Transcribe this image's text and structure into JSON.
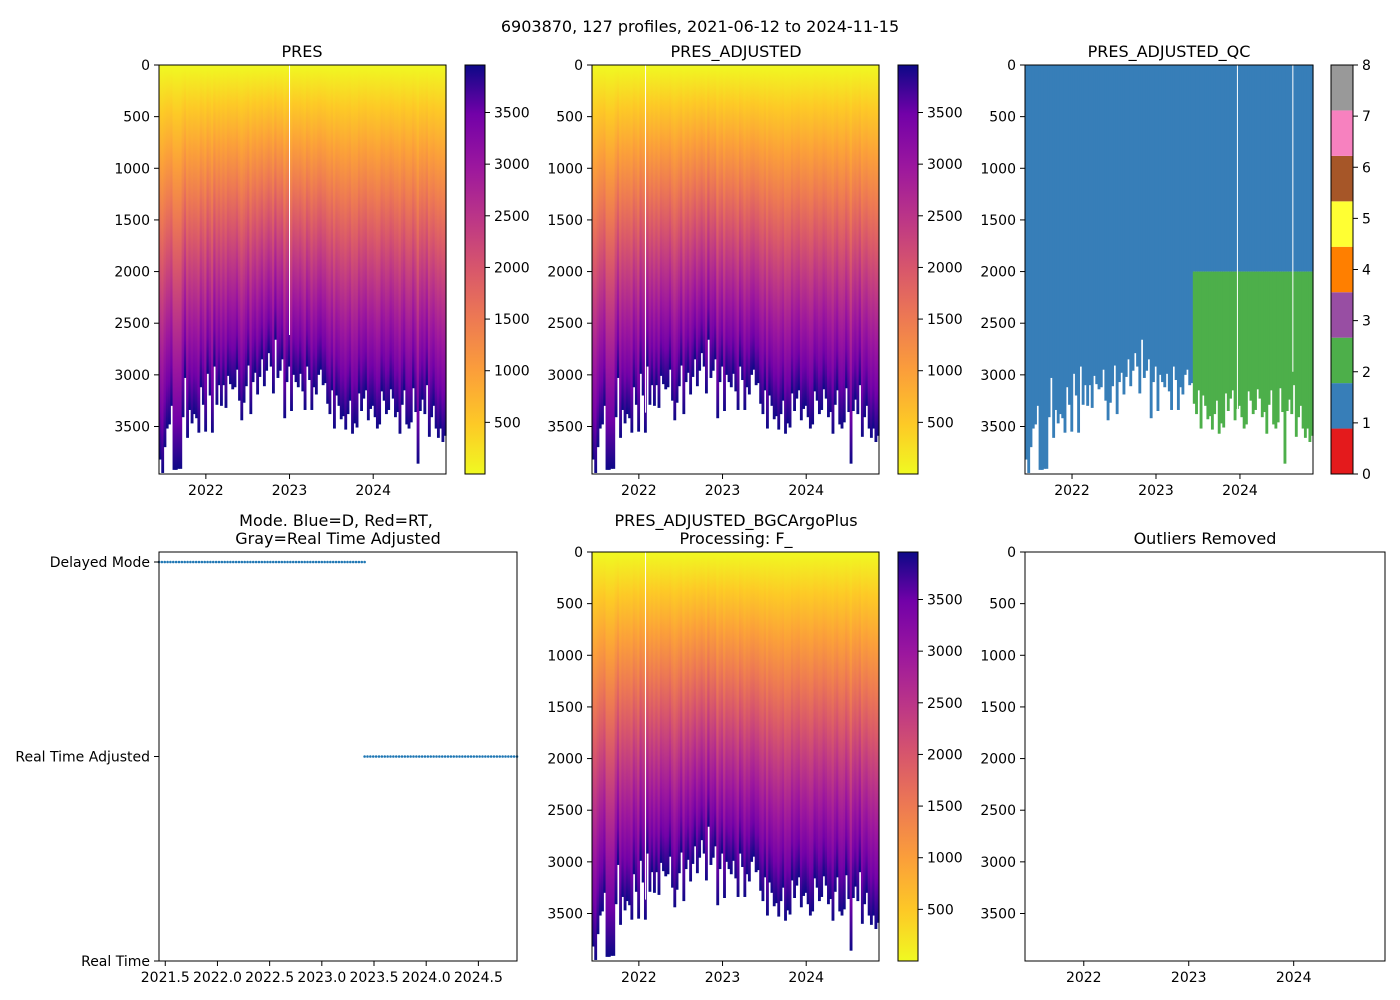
{
  "figure": {
    "suptitle": "6903870, 127 profiles, 2021-06-12 to 2024-11-15"
  },
  "chart_data": [
    {
      "id": "pres",
      "type": "heatmap",
      "title": "PRES",
      "x_range": [
        2021.44,
        2024.87
      ],
      "ylim": [
        3960,
        0
      ],
      "x_ticks": [
        "2022",
        "2023",
        "2024"
      ],
      "y_ticks": [
        0,
        500,
        1000,
        1500,
        2000,
        2500,
        3000,
        3500
      ],
      "colormap": "plasma_r",
      "colorbar": {
        "range": [
          0,
          3960
        ],
        "ticks": [
          500,
          1000,
          1500,
          2000,
          2500,
          3000,
          3500
        ]
      }
    },
    {
      "id": "pres_adj",
      "type": "heatmap",
      "title": "PRES_ADJUSTED",
      "x_range": [
        2021.44,
        2024.87
      ],
      "ylim": [
        3960,
        0
      ],
      "x_ticks": [
        "2022",
        "2023",
        "2024"
      ],
      "y_ticks": [
        0,
        500,
        1000,
        1500,
        2000,
        2500,
        3000,
        3500
      ],
      "colormap": "plasma_r",
      "colorbar": {
        "range": [
          0,
          3960
        ],
        "ticks": [
          500,
          1000,
          1500,
          2000,
          2500,
          3000,
          3500
        ]
      }
    },
    {
      "id": "pres_qc",
      "type": "heatmap",
      "title": "PRES_ADJUSTED_QC",
      "x_range": [
        2021.44,
        2024.87
      ],
      "ylim": [
        3960,
        0
      ],
      "x_ticks": [
        "2022",
        "2023",
        "2024"
      ],
      "y_ticks": [
        0,
        500,
        1000,
        1500,
        2000,
        2500,
        3000,
        3500
      ],
      "qc_flag_change": {
        "from_date": 2023.43,
        "below_pressure": 2000,
        "upper_flag": 1,
        "lower_flag": 2
      },
      "colorbar": {
        "ticks": [
          "0",
          "1",
          "2",
          "3",
          "4",
          "5",
          "6",
          "7",
          "8"
        ],
        "colors": [
          "#e41a1c",
          "#377eb8",
          "#4daf4a",
          "#984ea3",
          "#ff7f00",
          "#ffff33",
          "#a65628",
          "#f781bf",
          "#999999"
        ]
      }
    },
    {
      "id": "mode",
      "type": "scatter",
      "title_line1": "Mode. Blue=D, Red=RT,",
      "title_line2": "Gray=Real Time Adjusted",
      "x_range": [
        2021.44,
        2024.87
      ],
      "x_ticks": [
        "2021.5",
        "2022.0",
        "2022.5",
        "2023.0",
        "2023.5",
        "2024.0",
        "2024.5"
      ],
      "y_ticks": [
        "Real Time",
        "Real Time Adjusted",
        "Delayed Mode"
      ],
      "series": [
        {
          "name": "Delayed Mode",
          "level": 2,
          "x_start": 2021.44,
          "x_end": 2023.41
        },
        {
          "name": "Real Time Adjusted",
          "level": 1,
          "x_start": 2023.41,
          "x_end": 2024.87
        }
      ],
      "profiles": 127
    },
    {
      "id": "bgc",
      "type": "heatmap",
      "title_line1": "PRES_ADJUSTED_BGCArgoPlus",
      "title_line2": "Processing: F_",
      "x_range": [
        2021.44,
        2024.87
      ],
      "ylim": [
        3960,
        0
      ],
      "x_ticks": [
        "2022",
        "2023",
        "2024"
      ],
      "y_ticks": [
        0,
        500,
        1000,
        1500,
        2000,
        2500,
        3000,
        3500
      ],
      "colormap": "plasma_r",
      "colorbar": {
        "range": [
          0,
          3960
        ],
        "ticks": [
          500,
          1000,
          1500,
          2000,
          2500,
          3000,
          3500
        ]
      }
    },
    {
      "id": "outliers",
      "type": "scatter",
      "title": "Outliers Removed",
      "x_range": [
        2021.44,
        2024.87
      ],
      "ylim": [
        3960,
        0
      ],
      "x_ticks": [
        "2022",
        "2023",
        "2024"
      ],
      "y_ticks": [
        0,
        500,
        1000,
        1500,
        2000,
        2500,
        3000,
        3500
      ],
      "points": []
    }
  ],
  "profile_max_pressure": [
    3820,
    3950,
    3700,
    3520,
    3480,
    3300,
    3920,
    3920,
    3910,
    3910,
    3410,
    3030,
    3610,
    3340,
    3470,
    3380,
    3420,
    3560,
    3120,
    3290,
    3550,
    2990,
    3200,
    3560,
    2920,
    3290,
    3100,
    3300,
    3100,
    3320,
    3010,
    3090,
    3140,
    3120,
    2950,
    3250,
    3440,
    3270,
    3110,
    2910,
    3380,
    3070,
    2980,
    3190,
    3020,
    2850,
    3110,
    2960,
    2790,
    2920,
    3180,
    2660,
    3030,
    2960,
    2850,
    3420,
    3070,
    2920,
    3350,
    3000,
    3070,
    3120,
    2990,
    3160,
    3340,
    2920,
    3050,
    3340,
    3120,
    3190,
    3000,
    2950,
    3100,
    3080,
    3280,
    3380,
    3150,
    3520,
    3200,
    3300,
    3430,
    3400,
    3530,
    3380,
    3250,
    3570,
    3470,
    3510,
    3180,
    3350,
    3230,
    3150,
    3440,
    3330,
    3300,
    3410,
    3520,
    3480,
    3160,
    3250,
    3380,
    3340,
    3140,
    3230,
    3410,
    3360,
    3570,
    3290,
    3150,
    3480,
    3520,
    3460,
    3130,
    3360,
    3860,
    3350,
    3240,
    3380,
    3100,
    3600,
    3410,
    3300,
    3520,
    3610,
    3520,
    3650,
    3590
  ]
}
